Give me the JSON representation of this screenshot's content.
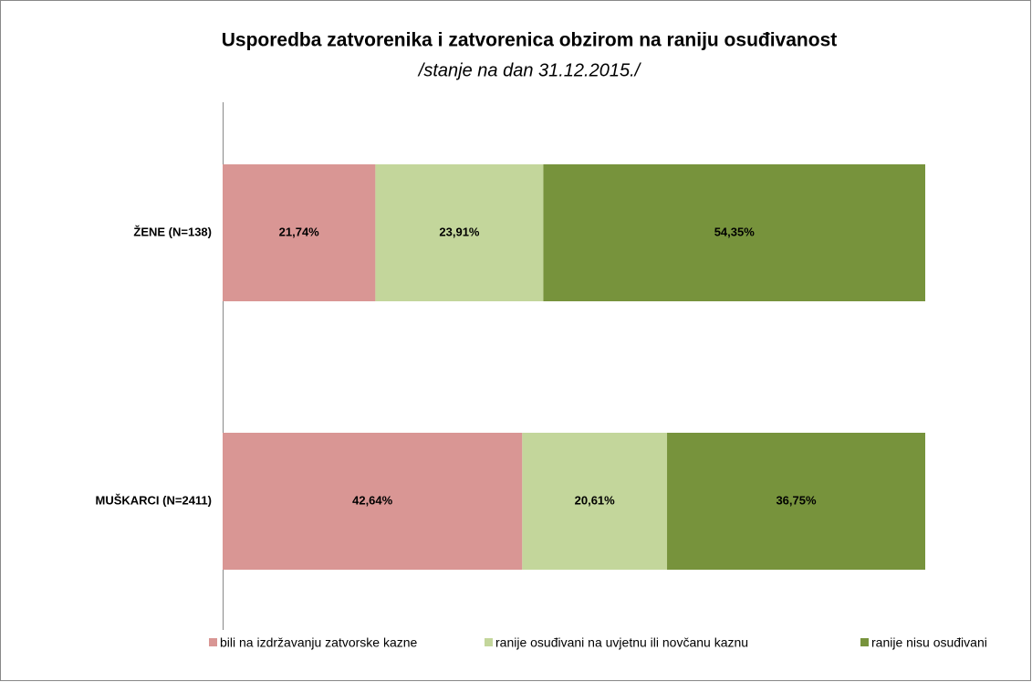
{
  "chart_data": {
    "type": "stacked-barh",
    "title": "Usporedba zatvorenika i zatvorenica obzirom na raniju osuđivanost",
    "subtitle": "/stanje na dan 31.12.2015./",
    "categories": [
      "ŽENE (N=138)",
      "MUŠKARCI (N=2411)"
    ],
    "series": [
      {
        "name": "bili na izdržavanju zatvorske kazne",
        "color": "#d99694",
        "values": [
          21.74,
          42.64
        ],
        "value_labels": [
          "21,74%",
          "42,64%"
        ]
      },
      {
        "name": "ranije osuđivani na uvjetnu ili novčanu kaznu",
        "color": "#c3d69b",
        "values": [
          23.91,
          20.61
        ],
        "value_labels": [
          "23,91%",
          "20,61%"
        ]
      },
      {
        "name": "ranije nisu osuđivani",
        "color": "#77933c",
        "values": [
          54.35,
          36.75
        ],
        "value_labels": [
          "54,35%",
          "36,75%"
        ]
      }
    ],
    "xlim": [
      0,
      100
    ],
    "legend": "bottom"
  }
}
